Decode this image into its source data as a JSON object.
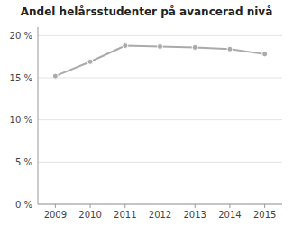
{
  "chart_data": {
    "type": "line",
    "title": "Andel helårsstudenter på avancerad nivå",
    "x": [
      2009,
      2010,
      2011,
      2012,
      2013,
      2014,
      2015
    ],
    "values": [
      15.2,
      16.9,
      18.8,
      18.7,
      18.6,
      18.4,
      17.8
    ],
    "color": "#aaaaaa",
    "marker": "circle",
    "line_style": "solid",
    "xlim": [
      2008.5,
      2015.5
    ],
    "ylim": [
      0,
      21
    ],
    "xticks": [
      2009,
      2010,
      2011,
      2012,
      2013,
      2014,
      2015
    ],
    "yticks": [
      {
        "value": 0,
        "label": "0 %"
      },
      {
        "value": 5,
        "label": "5 %"
      },
      {
        "value": 10,
        "label": "10 %"
      },
      {
        "value": 15,
        "label": "15 %"
      },
      {
        "value": 20,
        "label": "20 %"
      }
    ],
    "grid": true
  }
}
